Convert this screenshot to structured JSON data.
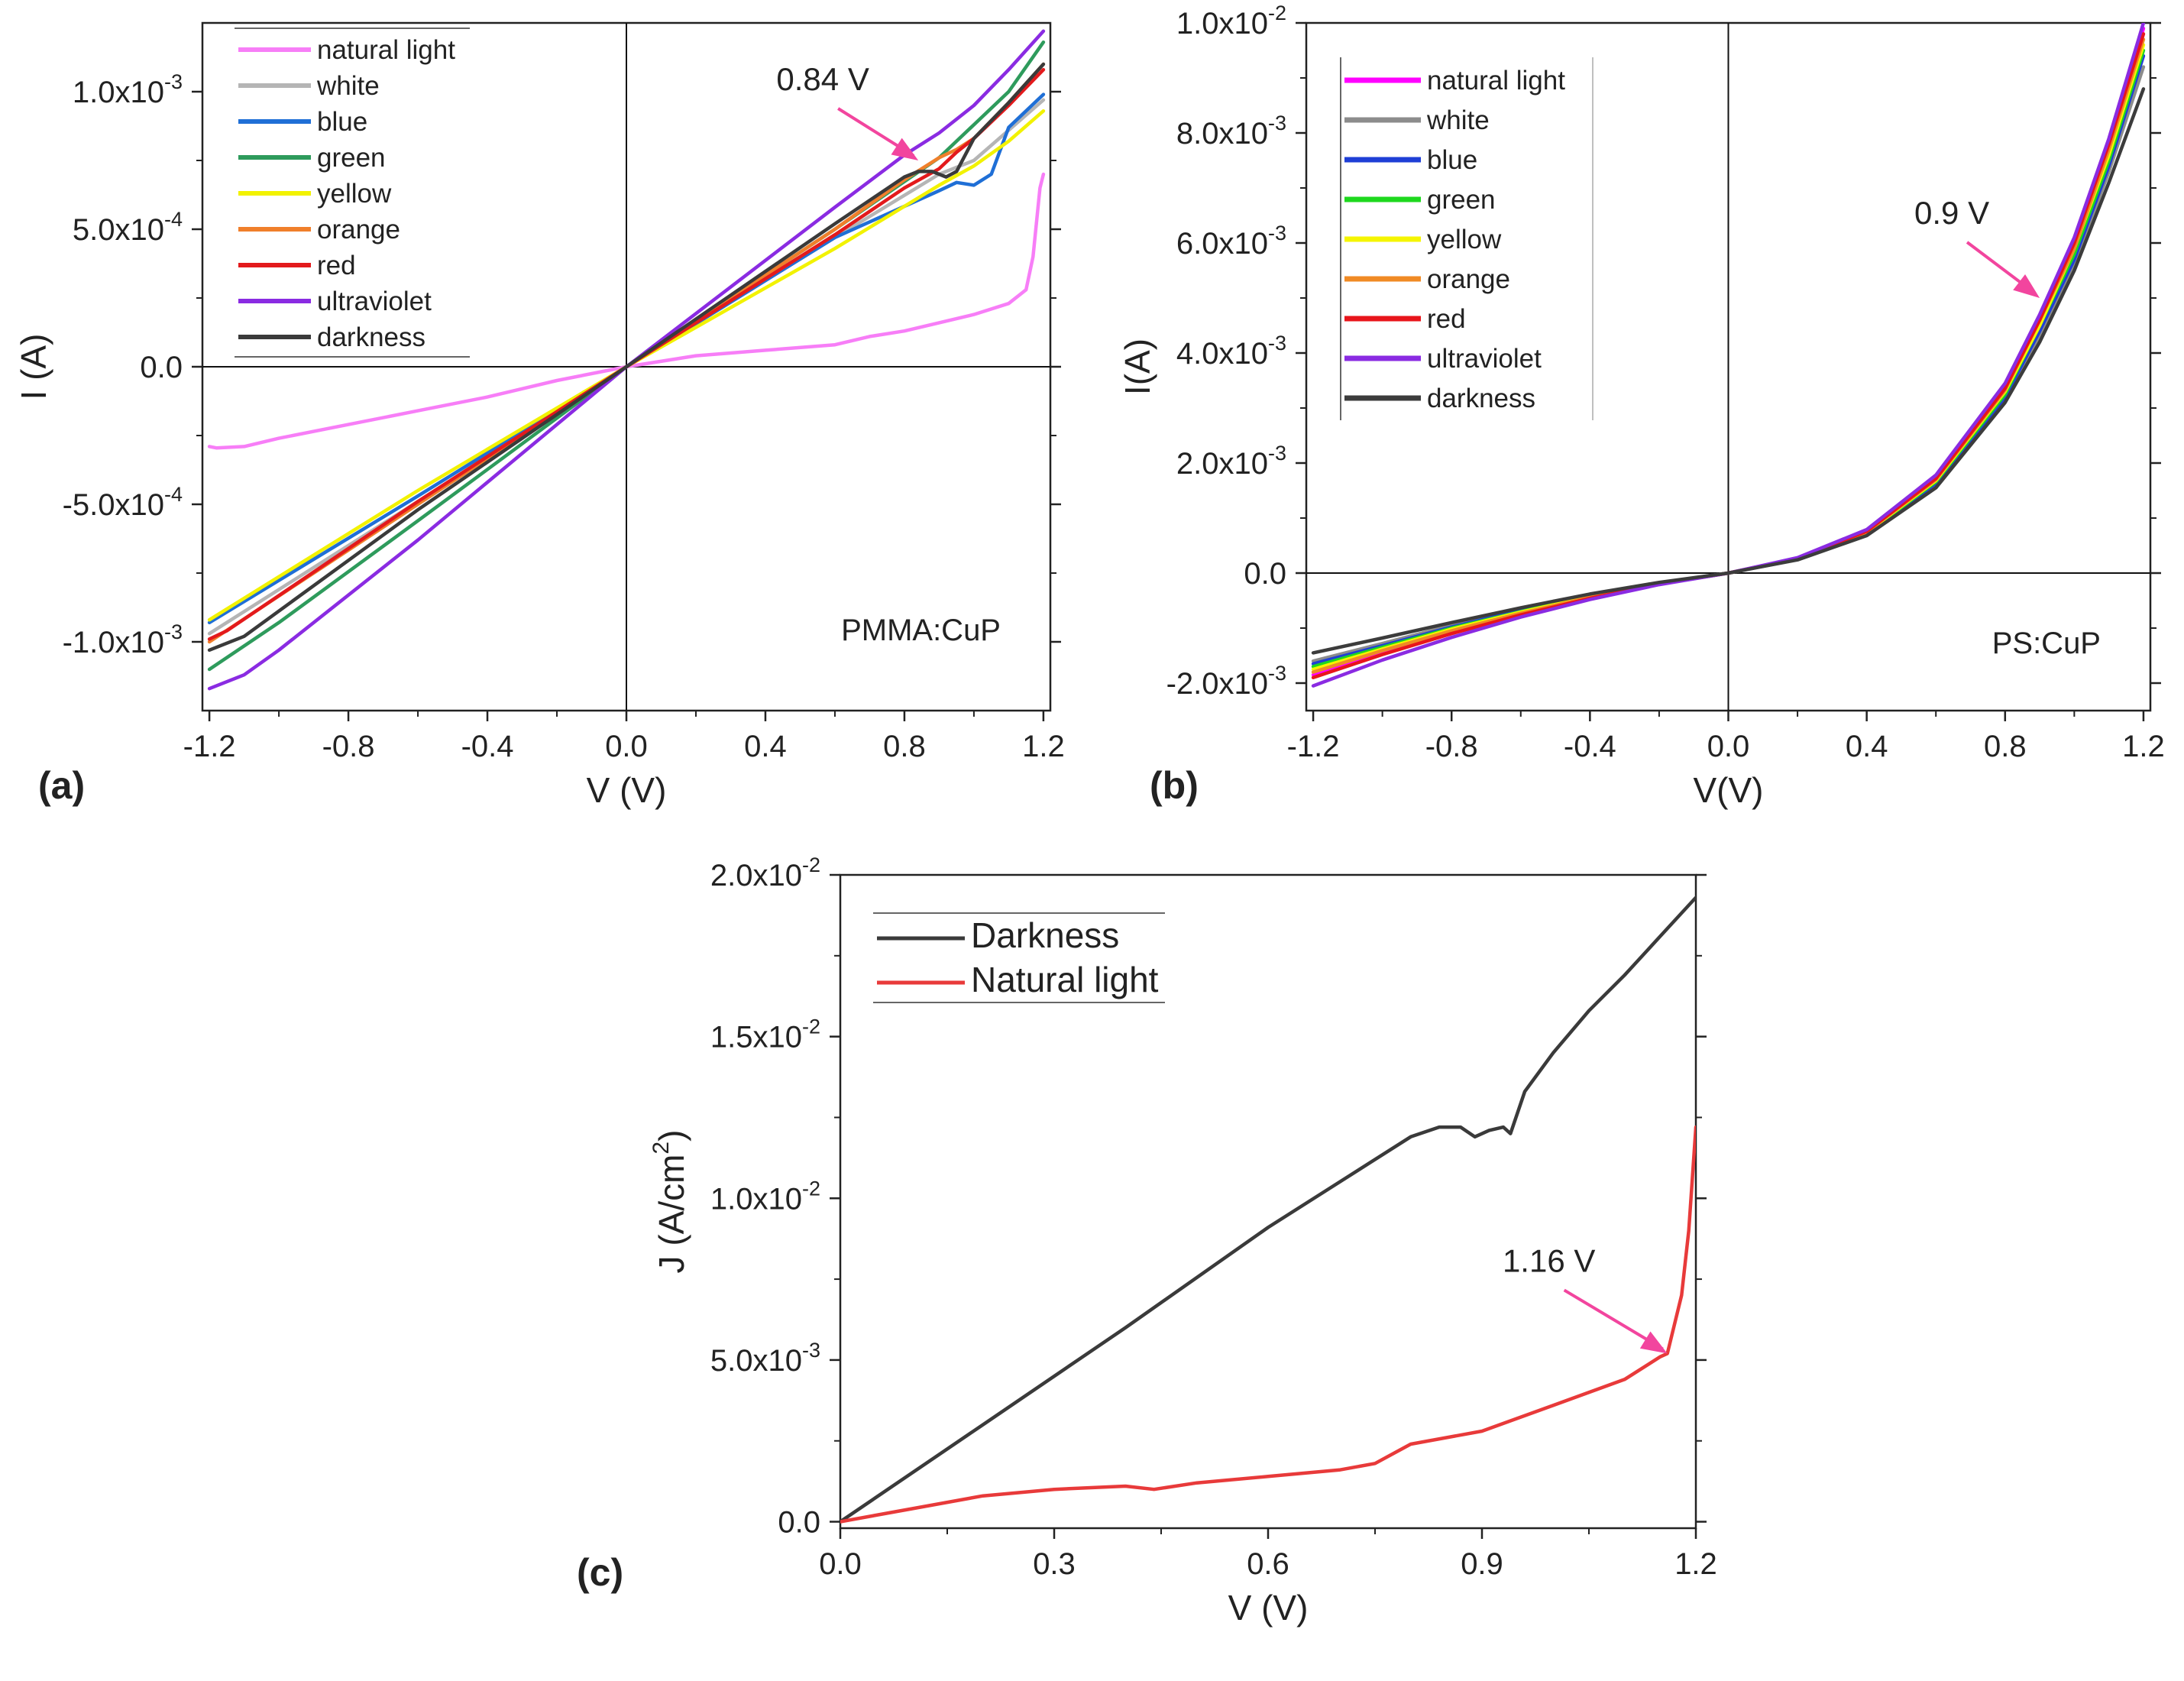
{
  "chart_data": [
    {
      "id": "a",
      "type": "line",
      "panel_label": "(a)",
      "sample_label": "PMMA:CuP",
      "xlabel": "V (V)",
      "ylabel": "I (A)",
      "xlim": [
        -1.22,
        1.22
      ],
      "ylim": [
        -0.00125,
        0.00125
      ],
      "xticks": [
        -1.2,
        -0.8,
        -0.4,
        0.0,
        0.4,
        0.8,
        1.2
      ],
      "xtick_labels": [
        "-1.2",
        "-0.8",
        "-0.4",
        "0.0",
        "0.4",
        "0.8",
        "1.2"
      ],
      "yticks": [
        -0.001,
        -0.0005,
        0.0,
        0.0005,
        0.001
      ],
      "ytick_labels": [
        {
          "m": "-1.0x10",
          "e": "-3"
        },
        {
          "m": "-5.0x10",
          "e": "-4"
        },
        {
          "m": "0.0",
          "e": ""
        },
        {
          "m": "5.0x10",
          "e": "-4"
        },
        {
          "m": "1.0x10",
          "e": "-3"
        }
      ],
      "legend_position": "top-left",
      "annotation": {
        "text": "0.84 V",
        "x": 0.84,
        "y": 0.00075
      },
      "series": [
        {
          "name": "natural light",
          "color": "#f77ef7",
          "x": [
            -1.2,
            -1.18,
            -1.1,
            -1.0,
            -0.8,
            -0.6,
            -0.4,
            -0.2,
            0.0,
            0.2,
            0.4,
            0.6,
            0.7,
            0.8,
            0.9,
            1.0,
            1.1,
            1.15,
            1.17,
            1.19,
            1.2
          ],
          "y": [
            -0.00029,
            -0.000295,
            -0.00029,
            -0.00026,
            -0.00021,
            -0.00016,
            -0.00011,
            -5e-05,
            0.0,
            4e-05,
            6e-05,
            8e-05,
            0.00011,
            0.00013,
            0.00016,
            0.00019,
            0.00023,
            0.00028,
            0.0004,
            0.00065,
            0.0007
          ]
        },
        {
          "name": "white",
          "color": "#b5b5b5",
          "x": [
            -1.2,
            -0.6,
            0.0,
            0.6,
            0.9,
            1.0,
            1.1,
            1.2
          ],
          "y": [
            -0.00097,
            -0.00049,
            0.0,
            0.00047,
            0.0007,
            0.00075,
            0.00086,
            0.00097
          ]
        },
        {
          "name": "blue",
          "color": "#1f6fd6",
          "x": [
            -1.2,
            -0.6,
            0.0,
            0.6,
            0.9,
            0.95,
            1.0,
            1.05,
            1.1,
            1.2
          ],
          "y": [
            -0.00093,
            -0.00047,
            0.0,
            0.00047,
            0.00064,
            0.00067,
            0.00066,
            0.0007,
            0.00087,
            0.00099
          ]
        },
        {
          "name": "green",
          "color": "#2e9b5c",
          "x": [
            -1.2,
            -1.0,
            -0.6,
            0.0,
            0.6,
            0.9,
            1.0,
            1.1,
            1.2
          ],
          "y": [
            -0.0011,
            -0.00093,
            -0.00056,
            0.0,
            0.0005,
            0.00076,
            0.00088,
            0.001,
            0.00118
          ]
        },
        {
          "name": "yellow",
          "color": "#f2f200",
          "x": [
            -1.2,
            -0.6,
            0.0,
            0.6,
            0.9,
            1.0,
            1.1,
            1.2
          ],
          "y": [
            -0.00092,
            -0.00045,
            0.0,
            0.00043,
            0.00066,
            0.00073,
            0.00082,
            0.00093
          ]
        },
        {
          "name": "orange",
          "color": "#f07f2b",
          "x": [
            -1.2,
            -0.6,
            0.0,
            0.6,
            0.8,
            0.9,
            0.95,
            1.0,
            1.1,
            1.2
          ],
          "y": [
            -0.001,
            -0.0005,
            0.0,
            0.0005,
            0.00068,
            0.00076,
            0.00079,
            0.00083,
            0.00096,
            0.0011
          ]
        },
        {
          "name": "red",
          "color": "#e31a1c",
          "x": [
            -1.2,
            -1.15,
            -0.6,
            0.0,
            0.6,
            0.8,
            0.9,
            0.95,
            1.0,
            1.1,
            1.2
          ],
          "y": [
            -0.00099,
            -0.00096,
            -0.00049,
            0.0,
            0.00048,
            0.00065,
            0.00072,
            0.00078,
            0.00083,
            0.00095,
            0.00108
          ]
        },
        {
          "name": "ultraviolet",
          "color": "#8a2be2",
          "x": [
            -1.2,
            -1.1,
            -1.0,
            -0.6,
            0.0,
            0.6,
            0.8,
            0.9,
            1.0,
            1.1,
            1.2
          ],
          "y": [
            -0.00117,
            -0.00112,
            -0.00103,
            -0.00063,
            0.0,
            0.00058,
            0.00077,
            0.00085,
            0.00095,
            0.00108,
            0.00122
          ]
        },
        {
          "name": "darkness",
          "color": "#3a3a3a",
          "x": [
            -1.2,
            -1.1,
            -0.6,
            0.0,
            0.6,
            0.8,
            0.84,
            0.88,
            0.92,
            0.95,
            1.0,
            1.1,
            1.2
          ],
          "y": [
            -0.00103,
            -0.00098,
            -0.00052,
            0.0,
            0.00052,
            0.00069,
            0.00071,
            0.00071,
            0.00069,
            0.00071,
            0.00083,
            0.00096,
            0.0011
          ]
        }
      ]
    },
    {
      "id": "b",
      "type": "line",
      "panel_label": "(b)",
      "sample_label": "PS:CuP",
      "xlabel": "V(V)",
      "ylabel": "I(A)",
      "xlim": [
        -1.22,
        1.22
      ],
      "ylim": [
        -0.0025,
        0.01
      ],
      "xticks": [
        -1.2,
        -0.8,
        -0.4,
        0.0,
        0.4,
        0.8,
        1.2
      ],
      "xtick_labels": [
        "-1.2",
        "-0.8",
        "-0.4",
        "0.0",
        "0.4",
        "0.8",
        "1.2"
      ],
      "yticks": [
        -0.002,
        0.0,
        0.002,
        0.004,
        0.006,
        0.008,
        0.01
      ],
      "ytick_labels": [
        {
          "m": "-2.0x10",
          "e": "-3"
        },
        {
          "m": "0.0",
          "e": ""
        },
        {
          "m": "2.0x10",
          "e": "-3"
        },
        {
          "m": "4.0x10",
          "e": "-3"
        },
        {
          "m": "6.0x10",
          "e": "-3"
        },
        {
          "m": "8.0x10",
          "e": "-3"
        },
        {
          "m": "1.0x10",
          "e": "-2"
        }
      ],
      "legend_position": "top-left",
      "annotation": {
        "text": "0.9 V",
        "x": 0.9,
        "y": 0.005
      },
      "series": [
        {
          "name": "natural light",
          "color": "#ff00ff",
          "x": [
            -1.2,
            -1.0,
            -0.8,
            -0.6,
            -0.4,
            -0.2,
            0.0,
            0.2,
            0.4,
            0.6,
            0.8,
            0.9,
            1.0,
            1.1,
            1.2
          ],
          "y": [
            -0.00185,
            -0.00145,
            -0.00108,
            -0.00075,
            -0.00045,
            -0.0002,
            0.0,
            0.00027,
            0.00077,
            0.00175,
            0.0034,
            0.0046,
            0.006,
            0.0078,
            0.0099
          ]
        },
        {
          "name": "white",
          "color": "#8c8c8c",
          "x": [
            -1.2,
            -1.0,
            -0.8,
            -0.6,
            -0.4,
            -0.2,
            0.0,
            0.2,
            0.4,
            0.6,
            0.8,
            0.9,
            1.0,
            1.1,
            1.2
          ],
          "y": [
            -0.0016,
            -0.00128,
            -0.00095,
            -0.00066,
            -0.0004,
            -0.00018,
            0.0,
            0.00025,
            0.0007,
            0.0016,
            0.00315,
            0.0043,
            0.0056,
            0.0073,
            0.0092
          ]
        },
        {
          "name": "blue",
          "color": "#1f3fd6",
          "x": [
            -1.2,
            -1.0,
            -0.8,
            -0.6,
            -0.4,
            -0.2,
            0.0,
            0.2,
            0.4,
            0.6,
            0.8,
            0.9,
            1.0,
            1.1,
            1.2
          ],
          "y": [
            -0.00165,
            -0.00132,
            -0.00098,
            -0.00068,
            -0.00041,
            -0.00018,
            0.0,
            0.00025,
            0.00072,
            0.00163,
            0.0032,
            0.0044,
            0.0057,
            0.0074,
            0.0094
          ]
        },
        {
          "name": "green",
          "color": "#1ed81e",
          "x": [
            -1.2,
            -1.0,
            -0.8,
            -0.6,
            -0.4,
            -0.2,
            0.0,
            0.2,
            0.4,
            0.6,
            0.8,
            0.9,
            1.0,
            1.1,
            1.2
          ],
          "y": [
            -0.0017,
            -0.00135,
            -0.001,
            -0.0007,
            -0.00042,
            -0.00019,
            0.0,
            0.00026,
            0.00073,
            0.00166,
            0.00325,
            0.0045,
            0.0058,
            0.0075,
            0.0095
          ]
        },
        {
          "name": "yellow",
          "color": "#f5f500",
          "x": [
            -1.2,
            -1.0,
            -0.8,
            -0.6,
            -0.4,
            -0.2,
            0.0,
            0.2,
            0.4,
            0.6,
            0.8,
            0.9,
            1.0,
            1.1,
            1.2
          ],
          "y": [
            -0.00175,
            -0.00138,
            -0.00102,
            -0.00071,
            -0.00043,
            -0.00019,
            0.0,
            0.00026,
            0.00074,
            0.00168,
            0.0033,
            0.0045,
            0.0059,
            0.0076,
            0.0096
          ]
        },
        {
          "name": "orange",
          "color": "#f08a24",
          "x": [
            -1.2,
            -1.0,
            -0.8,
            -0.6,
            -0.4,
            -0.2,
            0.0,
            0.2,
            0.4,
            0.6,
            0.8,
            0.9,
            1.0,
            1.1,
            1.2
          ],
          "y": [
            -0.0018,
            -0.00141,
            -0.00105,
            -0.00073,
            -0.00044,
            -0.0002,
            0.0,
            0.00027,
            0.00075,
            0.0017,
            0.00333,
            0.0046,
            0.0059,
            0.0077,
            0.0097
          ]
        },
        {
          "name": "red",
          "color": "#e8151b",
          "x": [
            -1.2,
            -1.0,
            -0.8,
            -0.6,
            -0.4,
            -0.2,
            0.0,
            0.2,
            0.4,
            0.6,
            0.8,
            0.9,
            1.0,
            1.1,
            1.2
          ],
          "y": [
            -0.0019,
            -0.00148,
            -0.0011,
            -0.00076,
            -0.00046,
            -0.0002,
            0.0,
            0.00027,
            0.00076,
            0.00172,
            0.00336,
            0.0046,
            0.006,
            0.0078,
            0.0098
          ]
        },
        {
          "name": "ultraviolet",
          "color": "#8a2be2",
          "x": [
            -1.2,
            -1.0,
            -0.8,
            -0.6,
            -0.4,
            -0.2,
            0.0,
            0.2,
            0.4,
            0.6,
            0.8,
            0.9,
            1.0,
            1.1,
            1.2
          ],
          "y": [
            -0.00205,
            -0.00158,
            -0.00117,
            -0.0008,
            -0.00048,
            -0.00021,
            0.0,
            0.00028,
            0.00079,
            0.00178,
            0.00345,
            0.0047,
            0.0061,
            0.0079,
            0.01
          ]
        },
        {
          "name": "darkness",
          "color": "#3c3c3c",
          "x": [
            -1.2,
            -1.0,
            -0.8,
            -0.6,
            -0.4,
            -0.2,
            0.0,
            0.2,
            0.4,
            0.6,
            0.8,
            0.9,
            1.0,
            1.1,
            1.2
          ],
          "y": [
            -0.00145,
            -0.00118,
            -0.0009,
            -0.00063,
            -0.00038,
            -0.00017,
            0.0,
            0.00024,
            0.00068,
            0.00155,
            0.0031,
            0.0042,
            0.0055,
            0.0071,
            0.0088
          ]
        }
      ]
    },
    {
      "id": "c",
      "type": "line",
      "panel_label": "(c)",
      "sample_label": "",
      "xlabel": "V (V)",
      "ylabel": "J (A/cm",
      "ylabel_sup": "2",
      "ylabel_end": ")",
      "xlim": [
        0.0,
        1.2
      ],
      "ylim": [
        -0.0002,
        0.02
      ],
      "xticks": [
        0.0,
        0.3,
        0.6,
        0.9,
        1.2
      ],
      "xtick_labels": [
        "0.0",
        "0.3",
        "0.6",
        "0.9",
        "1.2"
      ],
      "yticks": [
        0.0,
        0.005,
        0.01,
        0.015,
        0.02
      ],
      "ytick_labels": [
        {
          "m": "0.0",
          "e": ""
        },
        {
          "m": "5.0x10",
          "e": "-3"
        },
        {
          "m": "1.0x10",
          "e": "-2"
        },
        {
          "m": "1.5x10",
          "e": "-2"
        },
        {
          "m": "2.0x10",
          "e": "-2"
        }
      ],
      "legend_position": "top-left",
      "annotation": {
        "text": "1.16 V",
        "x": 1.16,
        "y": 0.0052
      },
      "series": [
        {
          "name": "Darkness",
          "color": "#3a3a3a",
          "x": [
            0.0,
            0.2,
            0.4,
            0.6,
            0.7,
            0.8,
            0.84,
            0.87,
            0.89,
            0.91,
            0.93,
            0.94,
            0.96,
            1.0,
            1.05,
            1.1,
            1.15,
            1.2
          ],
          "y": [
            0.0,
            0.003,
            0.006,
            0.0091,
            0.0105,
            0.0119,
            0.0122,
            0.0122,
            0.0119,
            0.0121,
            0.0122,
            0.012,
            0.0133,
            0.0145,
            0.0158,
            0.0169,
            0.0181,
            0.0193
          ]
        },
        {
          "name": "Natural light",
          "color": "#e83a3a",
          "x": [
            0.0,
            0.1,
            0.2,
            0.3,
            0.4,
            0.44,
            0.5,
            0.6,
            0.7,
            0.75,
            0.8,
            0.9,
            1.0,
            1.05,
            1.1,
            1.15,
            1.16,
            1.18,
            1.19,
            1.2
          ],
          "y": [
            0.0,
            0.0004,
            0.0008,
            0.001,
            0.0011,
            0.001,
            0.0012,
            0.0014,
            0.0016,
            0.0018,
            0.0024,
            0.0028,
            0.0036,
            0.004,
            0.0044,
            0.0051,
            0.0052,
            0.007,
            0.009,
            0.0122
          ]
        }
      ]
    }
  ]
}
